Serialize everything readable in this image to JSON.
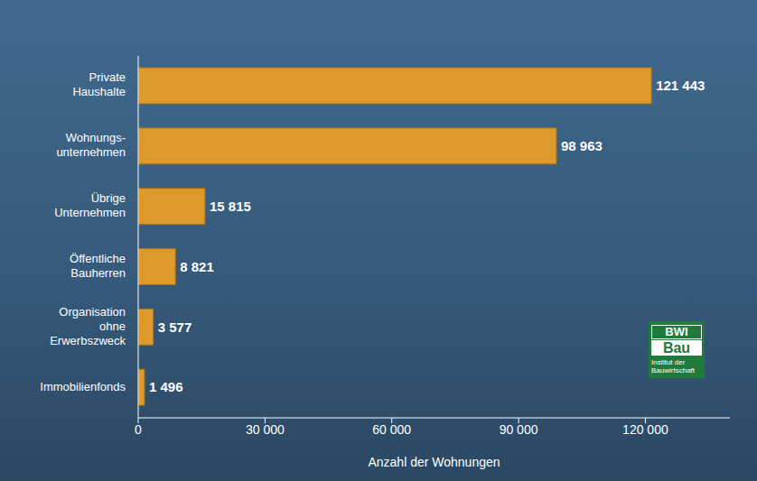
{
  "chart_data": {
    "type": "bar",
    "orientation": "horizontal",
    "categories": [
      "Private Haushalte",
      "Wohnungs-unternehmen",
      "Übrige Unternehmen",
      "Öffentliche Bauherren",
      "Organisation ohne Erwerbszweck",
      "Immobilienfonds"
    ],
    "values": [
      121443,
      98963,
      15815,
      8821,
      3577,
      1496
    ],
    "value_labels": [
      "121 443",
      "98 963",
      "15 815",
      "8 821",
      "3 577",
      "1 496"
    ],
    "data_labels": true,
    "color": "#dc9a2c",
    "x_label": "Anzahl der Wohnungen",
    "xlim": [
      0,
      140000
    ],
    "xticks": [
      0,
      {
        "value": 30000,
        "label": "30 000"
      },
      {
        "value": 60000,
        "label": "60 000"
      },
      {
        "value": 90000,
        "label": "90 000"
      },
      {
        "value": 120000,
        "label": "120 000"
      }
    ],
    "grid": false,
    "annotations": [
      "BWI",
      "Bau",
      "Institut der Bauwirtschaft"
    ]
  }
}
